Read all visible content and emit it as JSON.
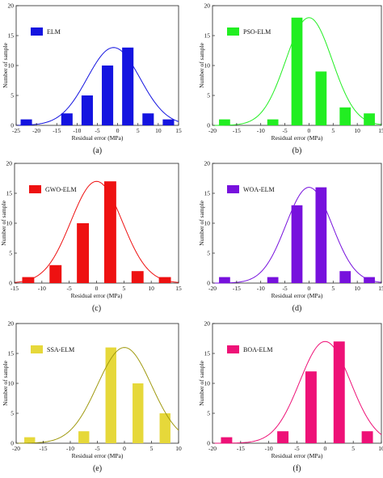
{
  "chart_data": [
    {
      "type": "bar",
      "panel_label": "(a)",
      "legend": "ELM",
      "color": "#1414e0",
      "xlabel": "Residual error (MPa)",
      "ylabel": "Number of sample",
      "xlim": [
        -25,
        15
      ],
      "ylim": [
        0,
        20
      ],
      "xticks": [
        -25,
        -20,
        -15,
        -10,
        -5,
        0,
        5,
        10,
        15
      ],
      "yticks": [
        0,
        5,
        10,
        15,
        20
      ],
      "bars": [
        {
          "x": -22.5,
          "value": 1
        },
        {
          "x": -17.5,
          "value": 0
        },
        {
          "x": -12.5,
          "value": 2
        },
        {
          "x": -7.5,
          "value": 5
        },
        {
          "x": -2.5,
          "value": 10
        },
        {
          "x": 2.5,
          "value": 13
        },
        {
          "x": 7.5,
          "value": 2
        },
        {
          "x": 12.5,
          "value": 1
        }
      ],
      "bar_width": 2.8,
      "curve": {
        "mean": -1,
        "sd": 6.5,
        "peak": 13
      }
    },
    {
      "type": "bar",
      "panel_label": "(b)",
      "legend": "PSO-ELM",
      "color": "#22ee22",
      "xlabel": "Residual error (MPa)",
      "ylabel": "Number of sample",
      "xlim": [
        -20,
        15
      ],
      "ylim": [
        0,
        20
      ],
      "xticks": [
        -20,
        -15,
        -10,
        -5,
        0,
        5,
        10,
        15
      ],
      "yticks": [
        0,
        5,
        10,
        15,
        20
      ],
      "bars": [
        {
          "x": -17.5,
          "value": 1
        },
        {
          "x": -7.5,
          "value": 1
        },
        {
          "x": -2.5,
          "value": 18
        },
        {
          "x": 2.5,
          "value": 9
        },
        {
          "x": 7.5,
          "value": 3
        },
        {
          "x": 12.5,
          "value": 2
        }
      ],
      "bar_width": 2.3,
      "curve": {
        "mean": 0,
        "sd": 4.8,
        "peak": 18
      }
    },
    {
      "type": "bar",
      "panel_label": "(c)",
      "legend": "GWO-ELM",
      "color": "#ee1111",
      "xlabel": "Residual error (MPa)",
      "ylabel": "Number of sample",
      "xlim": [
        -15,
        15
      ],
      "ylim": [
        0,
        20
      ],
      "xticks": [
        -15,
        -10,
        -5,
        0,
        5,
        10,
        15
      ],
      "yticks": [
        0,
        5,
        10,
        15,
        20
      ],
      "bars": [
        {
          "x": -12.5,
          "value": 1
        },
        {
          "x": -7.5,
          "value": 3
        },
        {
          "x": -2.5,
          "value": 10
        },
        {
          "x": 2.5,
          "value": 17
        },
        {
          "x": 7.5,
          "value": 2
        },
        {
          "x": 12.5,
          "value": 1
        }
      ],
      "bar_width": 2.2,
      "curve": {
        "mean": 0,
        "sd": 4.7,
        "peak": 17
      }
    },
    {
      "type": "bar",
      "panel_label": "(d)",
      "legend": "WOA-ELM",
      "color": "#7711dd",
      "xlabel": "Residual error (MPa)",
      "ylabel": "Number of sample",
      "xlim": [
        -20,
        15
      ],
      "ylim": [
        0,
        20
      ],
      "xticks": [
        -20,
        -15,
        -10,
        -5,
        0,
        5,
        10,
        15
      ],
      "yticks": [
        0,
        5,
        10,
        15,
        20
      ],
      "bars": [
        {
          "x": -17.5,
          "value": 1
        },
        {
          "x": -7.5,
          "value": 1
        },
        {
          "x": -2.5,
          "value": 13
        },
        {
          "x": 2.5,
          "value": 16
        },
        {
          "x": 7.5,
          "value": 2
        },
        {
          "x": 12.5,
          "value": 1
        }
      ],
      "bar_width": 2.3,
      "curve": {
        "mean": 0,
        "sd": 4.8,
        "peak": 16
      }
    },
    {
      "type": "bar",
      "panel_label": "(e)",
      "legend": "SSA-ELM",
      "color": "#e6d83a",
      "xlabel": "Residual error (MPa)",
      "ylabel": "Number of sample",
      "xlim": [
        -20,
        10
      ],
      "ylim": [
        0,
        20
      ],
      "xticks": [
        -20,
        -15,
        -10,
        -5,
        0,
        5,
        10
      ],
      "yticks": [
        0,
        5,
        10,
        15,
        20
      ],
      "bars": [
        {
          "x": -17.5,
          "value": 1
        },
        {
          "x": -7.5,
          "value": 2
        },
        {
          "x": -2.5,
          "value": 16
        },
        {
          "x": 2.5,
          "value": 10
        },
        {
          "x": 7.5,
          "value": 5
        }
      ],
      "bar_width": 2.0,
      "curve": {
        "mean": 0,
        "sd": 5.0,
        "peak": 16
      },
      "curve_color": "#a09a10"
    },
    {
      "type": "bar",
      "panel_label": "(f)",
      "legend": "BOA-ELM",
      "color": "#ee1177",
      "xlabel": "Residual error (MPa)",
      "ylabel": "Number of sample",
      "xlim": [
        -20,
        10
      ],
      "ylim": [
        0,
        20
      ],
      "xticks": [
        -20,
        -15,
        -10,
        -5,
        0,
        5,
        10
      ],
      "yticks": [
        0,
        5,
        10,
        15,
        20
      ],
      "bars": [
        {
          "x": -17.5,
          "value": 1
        },
        {
          "x": -7.5,
          "value": 2
        },
        {
          "x": -2.5,
          "value": 12
        },
        {
          "x": 2.5,
          "value": 17
        },
        {
          "x": 7.5,
          "value": 2
        }
      ],
      "bar_width": 2.0,
      "curve": {
        "mean": 0,
        "sd": 4.5,
        "peak": 17
      }
    }
  ]
}
